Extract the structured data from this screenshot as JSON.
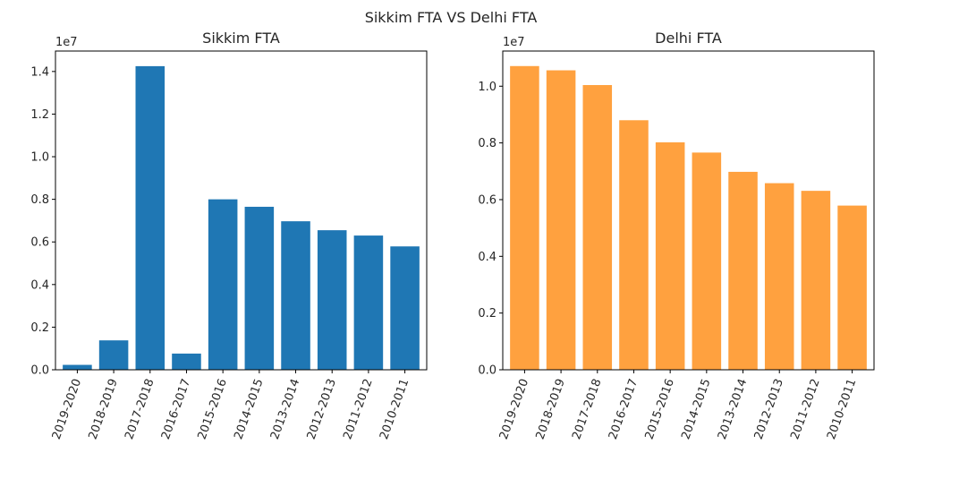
{
  "suptitle": "Sikkim FTA VS Delhi FTA",
  "chart_data": [
    {
      "type": "bar",
      "title": "Sikkim FTA",
      "xlabel": "",
      "ylabel": "",
      "offset_label": "1e7",
      "color": "#1f77b4",
      "categories": [
        "2019-2020",
        "2018-2019",
        "2017-2018",
        "2016-2017",
        "2015-2016",
        "2014-2015",
        "2013-2014",
        "2012-2013",
        "2011-2012",
        "2010-2011"
      ],
      "values": [
        230000,
        1380000,
        14250000,
        760000,
        8000000,
        7650000,
        6970000,
        6550000,
        6300000,
        5790000
      ],
      "ylim": [
        0,
        14960000
      ],
      "yticks": [
        0,
        2000000,
        4000000,
        6000000,
        8000000,
        10000000,
        12000000,
        14000000
      ],
      "ytick_labels": [
        "0.0",
        "0.2",
        "0.4",
        "0.6",
        "0.8",
        "1.0",
        "1.2",
        "1.4"
      ],
      "grid": false
    },
    {
      "type": "bar",
      "title": "Delhi FTA",
      "xlabel": "",
      "ylabel": "",
      "offset_label": "1e7",
      "color": "#ffa13f",
      "categories": [
        "2019-2020",
        "2018-2019",
        "2017-2018",
        "2016-2017",
        "2015-2016",
        "2014-2015",
        "2013-2014",
        "2012-2013",
        "2011-2012",
        "2010-2011"
      ],
      "values": [
        10710000,
        10560000,
        10040000,
        8800000,
        8020000,
        7660000,
        6980000,
        6580000,
        6310000,
        5790000
      ],
      "ylim": [
        0,
        11240000
      ],
      "yticks": [
        0,
        2000000,
        4000000,
        6000000,
        8000000,
        10000000
      ],
      "ytick_labels": [
        "0.0",
        "0.2",
        "0.4",
        "0.6",
        "0.8",
        "1.0"
      ],
      "grid": false
    }
  ]
}
